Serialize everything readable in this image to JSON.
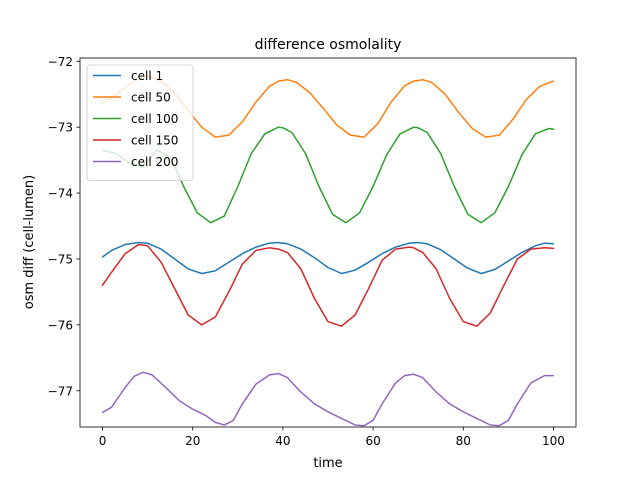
{
  "chart_data": {
    "type": "line",
    "title": "difference osmolality",
    "xlabel": "time",
    "ylabel": "osm diff (cell-lumen)",
    "xlim": [
      -5,
      105
    ],
    "ylim": [
      -77.55,
      -71.95
    ],
    "xticks": [
      0,
      20,
      40,
      60,
      80,
      100
    ],
    "yticks": [
      -72,
      -73,
      -74,
      -75,
      -76,
      -77
    ],
    "xtick_labels": [
      "0",
      "20",
      "40",
      "60",
      "80",
      "100"
    ],
    "ytick_labels": [
      "−72",
      "−73",
      "−74",
      "−75",
      "−76",
      "−77"
    ],
    "grid": false,
    "legend_position": "top-left",
    "series": [
      {
        "name": "cell 1",
        "color": "#1f77b4",
        "x": [
          0,
          2,
          5,
          8,
          10,
          13,
          16,
          19,
          22,
          25,
          28,
          31,
          34,
          37,
          39,
          41,
          44,
          47,
          50,
          53,
          56,
          59,
          62,
          65,
          68,
          70,
          72,
          75,
          78,
          81,
          84,
          87,
          90,
          93,
          96,
          98,
          100
        ],
        "y": [
          -74.97,
          -74.87,
          -74.78,
          -74.75,
          -74.76,
          -74.85,
          -75.0,
          -75.15,
          -75.22,
          -75.18,
          -75.05,
          -74.92,
          -74.82,
          -74.76,
          -74.75,
          -74.77,
          -74.85,
          -74.98,
          -75.13,
          -75.22,
          -75.17,
          -75.05,
          -74.92,
          -74.82,
          -74.76,
          -74.75,
          -74.77,
          -74.86,
          -75.0,
          -75.14,
          -75.22,
          -75.16,
          -75.03,
          -74.9,
          -74.8,
          -74.76,
          -74.77
        ]
      },
      {
        "name": "cell 50",
        "color": "#ff7f0e",
        "x": [
          0,
          2,
          4,
          7,
          10,
          13,
          16,
          19,
          22,
          25,
          28,
          31,
          34,
          37,
          39,
          41,
          43,
          46,
          49,
          52,
          55,
          58,
          61,
          64,
          67,
          69,
          71,
          73,
          76,
          79,
          82,
          85,
          88,
          91,
          94,
          97,
          100
        ],
        "y": [
          -72.65,
          -72.55,
          -72.45,
          -72.3,
          -72.22,
          -72.3,
          -72.48,
          -72.75,
          -73.0,
          -73.15,
          -73.12,
          -72.92,
          -72.62,
          -72.38,
          -72.3,
          -72.28,
          -72.32,
          -72.48,
          -72.72,
          -72.97,
          -73.12,
          -73.15,
          -72.95,
          -72.62,
          -72.37,
          -72.3,
          -72.28,
          -72.32,
          -72.5,
          -72.78,
          -73.02,
          -73.15,
          -73.12,
          -72.88,
          -72.58,
          -72.38,
          -72.3
        ]
      },
      {
        "name": "cell 100",
        "color": "#2ca02c",
        "x": [
          0,
          3,
          6,
          9,
          12,
          15,
          18,
          21,
          24,
          27,
          30,
          33,
          36,
          39,
          40,
          42,
          45,
          48,
          51,
          54,
          57,
          60,
          63,
          66,
          69,
          70,
          72,
          75,
          78,
          81,
          84,
          87,
          90,
          93,
          96,
          99,
          100
        ],
        "y": [
          -73.35,
          -73.4,
          -73.55,
          -73.6,
          -73.35,
          -73.45,
          -73.9,
          -74.3,
          -74.45,
          -74.35,
          -73.9,
          -73.4,
          -73.1,
          -73.0,
          -73.01,
          -73.08,
          -73.4,
          -73.9,
          -74.32,
          -74.45,
          -74.3,
          -73.9,
          -73.42,
          -73.1,
          -73.0,
          -73.01,
          -73.08,
          -73.4,
          -73.9,
          -74.32,
          -74.45,
          -74.3,
          -73.9,
          -73.42,
          -73.1,
          -73.02,
          -73.03
        ]
      },
      {
        "name": "cell 150",
        "color": "#d62728",
        "x": [
          0,
          2,
          5,
          8,
          10,
          13,
          16,
          19,
          22,
          25,
          28,
          31,
          34,
          37,
          39,
          41,
          44,
          47,
          50,
          53,
          56,
          59,
          62,
          65,
          68,
          69,
          71,
          74,
          77,
          80,
          83,
          86,
          89,
          92,
          95,
          98,
          100
        ],
        "y": [
          -75.4,
          -75.2,
          -74.92,
          -74.78,
          -74.8,
          -75.05,
          -75.45,
          -75.85,
          -76.0,
          -75.88,
          -75.5,
          -75.08,
          -74.87,
          -74.83,
          -74.85,
          -74.9,
          -75.15,
          -75.6,
          -75.95,
          -76.02,
          -75.85,
          -75.45,
          -75.02,
          -74.85,
          -74.82,
          -74.83,
          -74.9,
          -75.15,
          -75.6,
          -75.95,
          -76.02,
          -75.82,
          -75.4,
          -75.0,
          -74.85,
          -74.83,
          -74.84
        ]
      },
      {
        "name": "cell 200",
        "color": "#9467bd",
        "x": [
          0,
          2,
          5,
          7,
          9,
          11,
          14,
          17,
          20,
          23,
          25,
          27,
          29,
          31,
          34,
          37,
          39,
          41,
          44,
          47,
          50,
          53,
          56,
          58,
          60,
          62,
          65,
          67,
          69,
          71,
          74,
          77,
          80,
          83,
          86,
          88,
          90,
          92,
          95,
          98,
          100
        ],
        "y": [
          -77.33,
          -77.25,
          -76.95,
          -76.78,
          -76.72,
          -76.76,
          -76.95,
          -77.15,
          -77.28,
          -77.38,
          -77.48,
          -77.52,
          -77.45,
          -77.2,
          -76.9,
          -76.76,
          -76.74,
          -76.8,
          -77.02,
          -77.2,
          -77.32,
          -77.42,
          -77.52,
          -77.53,
          -77.45,
          -77.2,
          -76.88,
          -76.77,
          -76.75,
          -76.8,
          -77.02,
          -77.2,
          -77.32,
          -77.42,
          -77.52,
          -77.53,
          -77.45,
          -77.2,
          -76.88,
          -76.77,
          -76.77
        ]
      }
    ]
  }
}
